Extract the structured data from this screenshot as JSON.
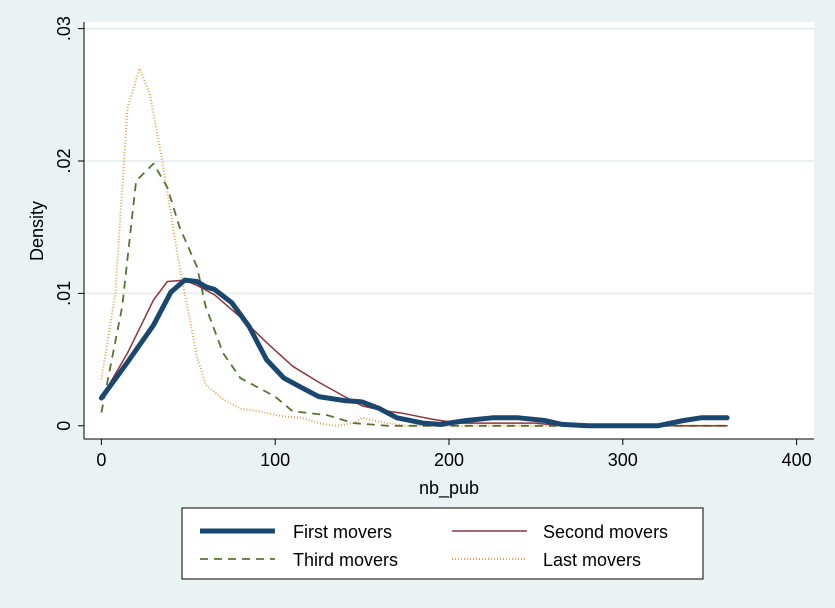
{
  "chart_data": {
    "type": "line",
    "title": "",
    "xlabel": "nb_pub",
    "ylabel": "Density",
    "xlim": [
      -10,
      410
    ],
    "ylim": [
      -0.001,
      0.0305
    ],
    "xticks": [
      0,
      100,
      200,
      300,
      400
    ],
    "xtick_labels": [
      "0",
      "100",
      "200",
      "300",
      "400"
    ],
    "yticks": [
      0,
      0.01,
      0.02,
      0.03
    ],
    "ytick_labels": [
      "0",
      ".01",
      ".02",
      ".03"
    ],
    "grid": "horizontal",
    "legend_position": "bottom",
    "series": [
      {
        "name": "First movers",
        "color": "#1a476f",
        "style": "solid-thick",
        "points": [
          [
            0,
            0.0021
          ],
          [
            15,
            0.0048
          ],
          [
            30,
            0.0076
          ],
          [
            40,
            0.0101
          ],
          [
            48,
            0.011
          ],
          [
            55,
            0.0109
          ],
          [
            60,
            0.0105
          ],
          [
            65,
            0.0103
          ],
          [
            75,
            0.0093
          ],
          [
            85,
            0.0075
          ],
          [
            95,
            0.005
          ],
          [
            105,
            0.0036
          ],
          [
            115,
            0.0029
          ],
          [
            125,
            0.0022
          ],
          [
            140,
            0.0019
          ],
          [
            150,
            0.0018
          ],
          [
            160,
            0.0013
          ],
          [
            170,
            0.0006
          ],
          [
            185,
            0.0002
          ],
          [
            195,
            0.0001
          ],
          [
            210,
            0.0004
          ],
          [
            225,
            0.0006
          ],
          [
            240,
            0.0006
          ],
          [
            255,
            0.0004
          ],
          [
            265,
            0.0001
          ],
          [
            280,
            0.0
          ],
          [
            300,
            0.0
          ],
          [
            320,
            0.0
          ],
          [
            335,
            0.0004
          ],
          [
            345,
            0.0006
          ],
          [
            360,
            0.0006
          ]
        ]
      },
      {
        "name": "Second movers",
        "color": "#90353b",
        "style": "solid",
        "points": [
          [
            0,
            0.0021
          ],
          [
            15,
            0.0055
          ],
          [
            30,
            0.0095
          ],
          [
            38,
            0.0109
          ],
          [
            48,
            0.011
          ],
          [
            55,
            0.0106
          ],
          [
            65,
            0.0099
          ],
          [
            80,
            0.0082
          ],
          [
            95,
            0.0063
          ],
          [
            110,
            0.0045
          ],
          [
            125,
            0.0033
          ],
          [
            140,
            0.0022
          ],
          [
            150,
            0.0015
          ],
          [
            160,
            0.0012
          ],
          [
            175,
            0.0009
          ],
          [
            190,
            0.0005
          ],
          [
            205,
            0.0002
          ],
          [
            225,
            0.0002
          ],
          [
            250,
            0.0002
          ],
          [
            265,
            0.0
          ],
          [
            300,
            0.0
          ],
          [
            330,
            0.0
          ],
          [
            360,
            0.0
          ]
        ]
      },
      {
        "name": "Third movers",
        "color": "#55752f",
        "style": "dashed",
        "points": [
          [
            0,
            0.001
          ],
          [
            12,
            0.009
          ],
          [
            20,
            0.0185
          ],
          [
            30,
            0.0198
          ],
          [
            38,
            0.018
          ],
          [
            45,
            0.015
          ],
          [
            55,
            0.012
          ],
          [
            60,
            0.009
          ],
          [
            70,
            0.0055
          ],
          [
            80,
            0.0036
          ],
          [
            90,
            0.0029
          ],
          [
            100,
            0.0022
          ],
          [
            110,
            0.0011
          ],
          [
            130,
            0.0008
          ],
          [
            145,
            0.0002
          ],
          [
            165,
            0.0
          ],
          [
            200,
            0.0
          ],
          [
            250,
            0.0
          ],
          [
            300,
            0.0
          ],
          [
            360,
            0.0
          ]
        ]
      },
      {
        "name": "Last movers",
        "color": "#e8a04e",
        "style": "dotted",
        "points": [
          [
            0,
            0.0035
          ],
          [
            8,
            0.01
          ],
          [
            15,
            0.024
          ],
          [
            22,
            0.027
          ],
          [
            28,
            0.025
          ],
          [
            35,
            0.02
          ],
          [
            45,
            0.012
          ],
          [
            55,
            0.0052
          ],
          [
            60,
            0.0031
          ],
          [
            70,
            0.002
          ],
          [
            80,
            0.0013
          ],
          [
            90,
            0.0011
          ],
          [
            105,
            0.0007
          ],
          [
            115,
            0.0006
          ],
          [
            125,
            0.0002
          ],
          [
            135,
            0.0
          ],
          [
            145,
            0.0002
          ],
          [
            150,
            0.0006
          ],
          [
            160,
            0.0003
          ],
          [
            175,
            0.0
          ],
          [
            200,
            0.0
          ],
          [
            250,
            0.0
          ],
          [
            300,
            0.0
          ],
          [
            360,
            0.0
          ]
        ]
      }
    ]
  }
}
